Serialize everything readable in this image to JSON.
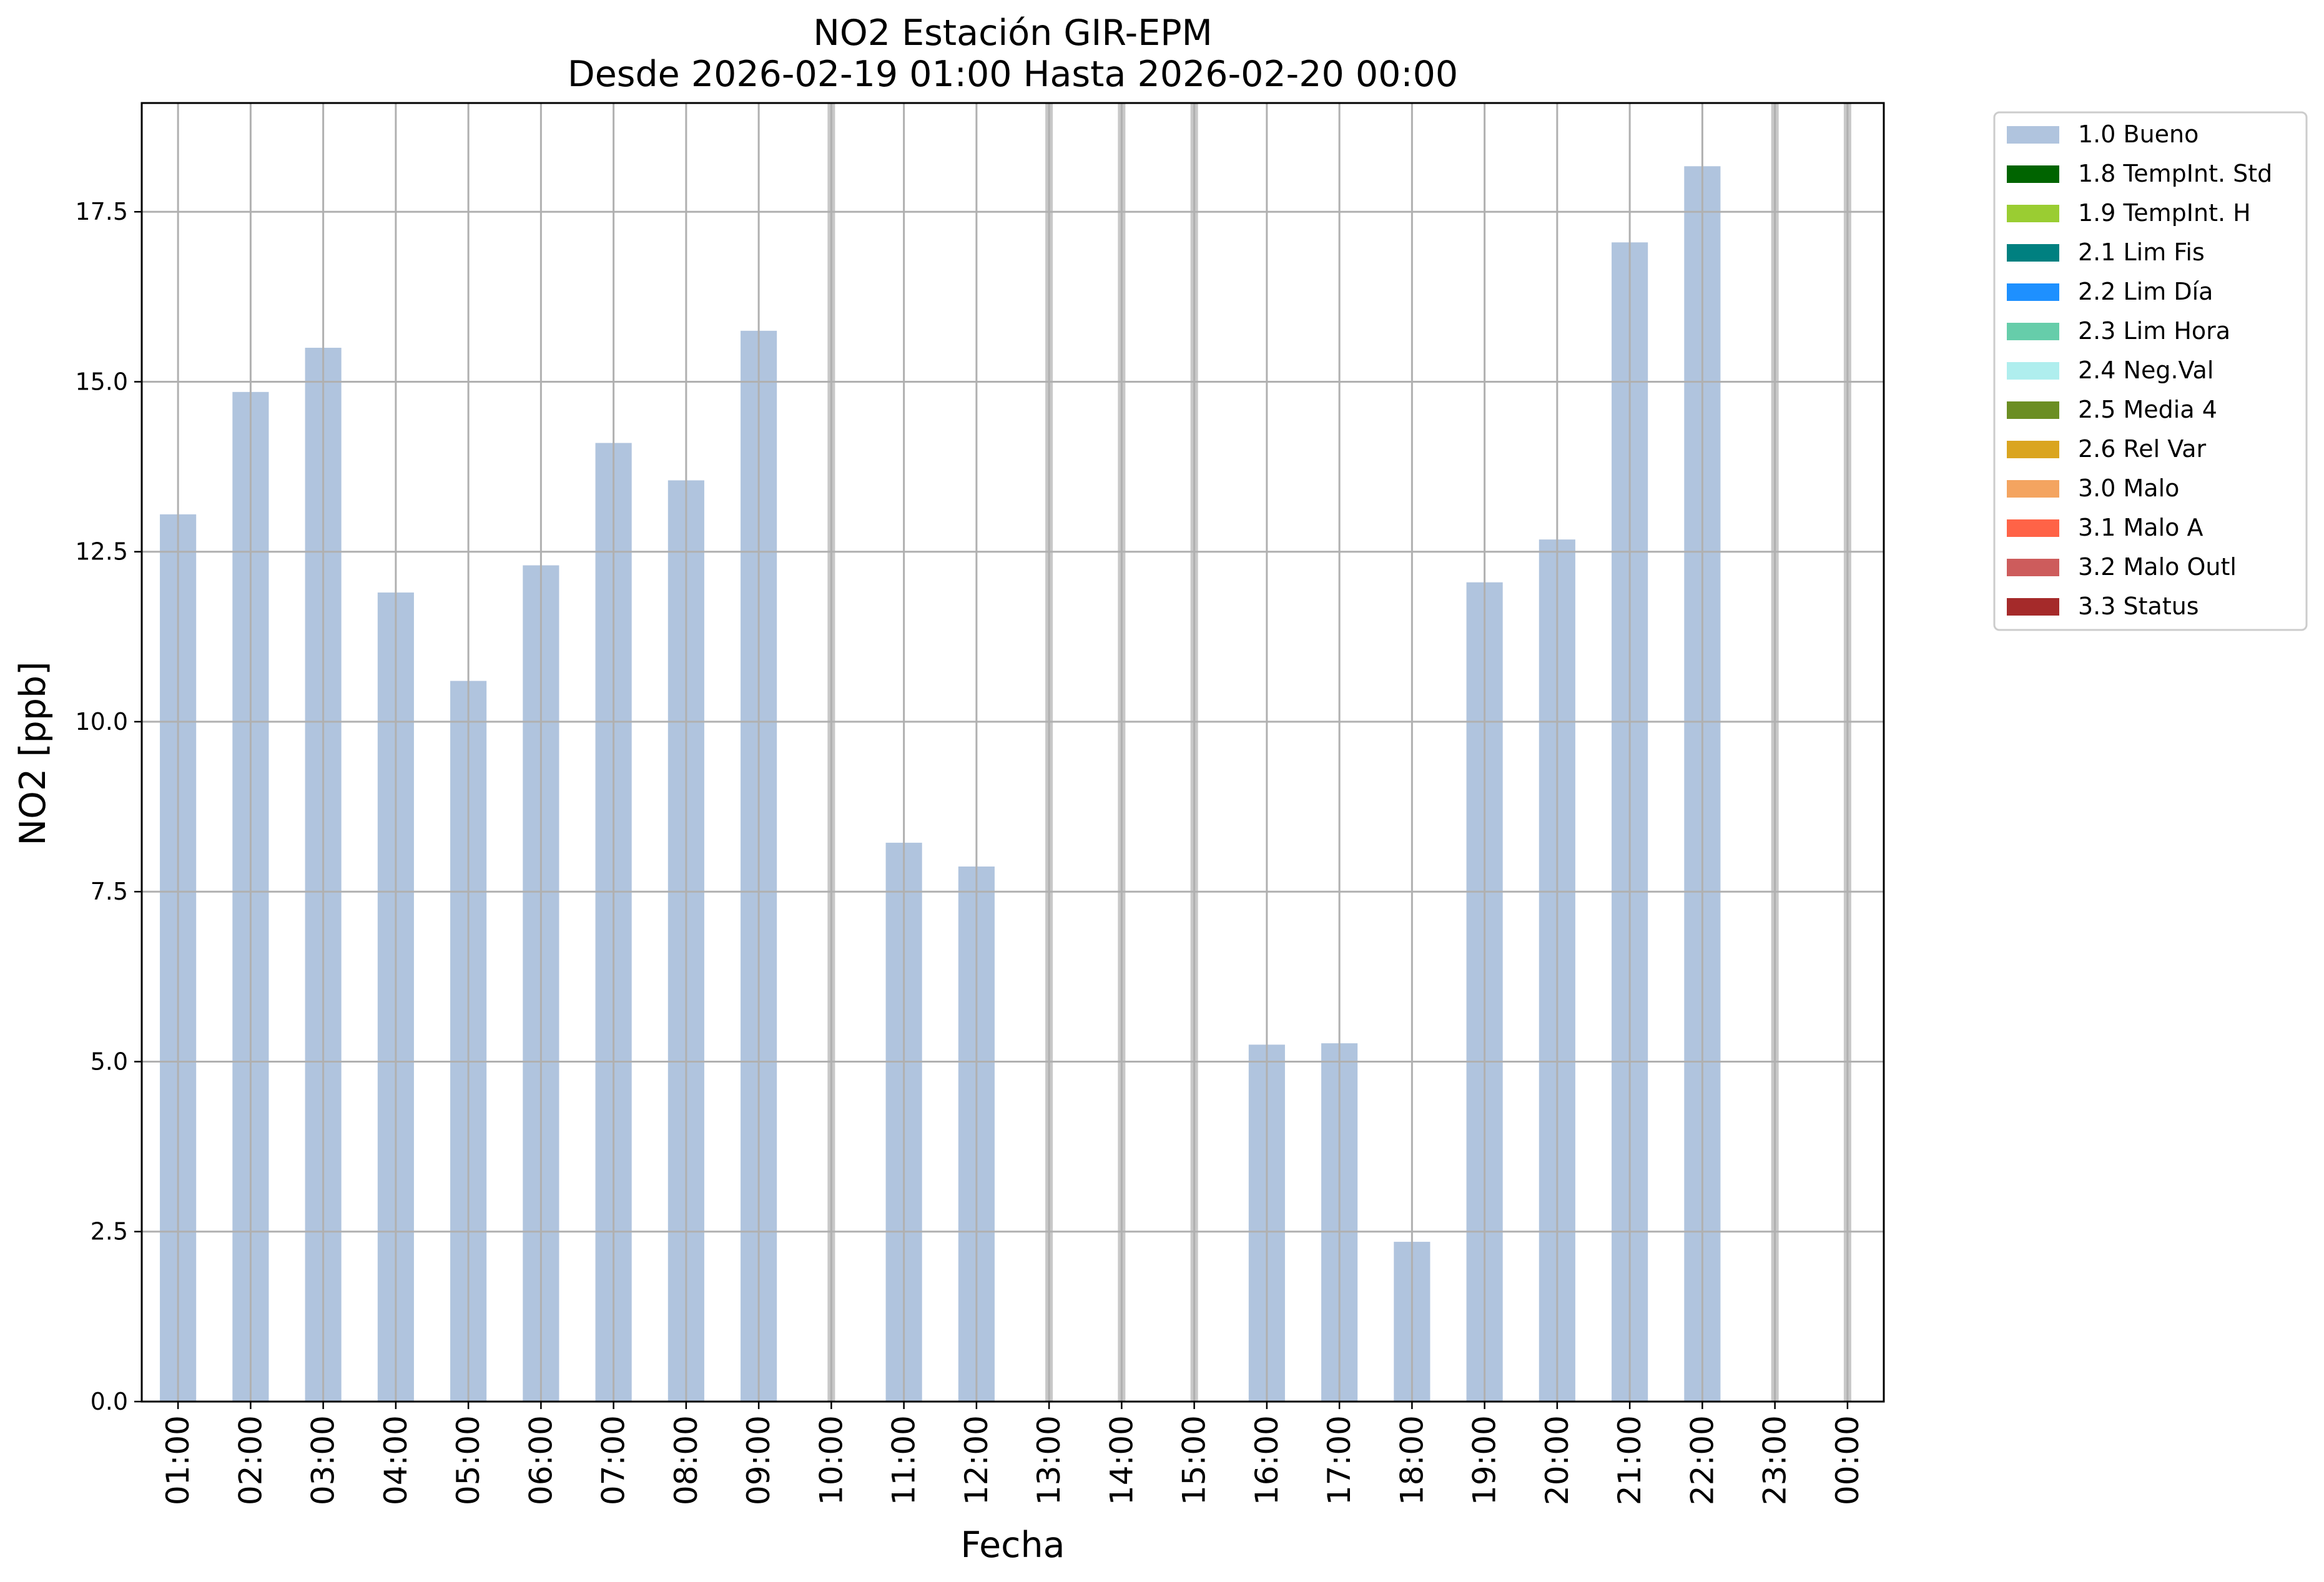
{
  "chart_data": {
    "type": "bar",
    "title": "NO2 Estación GIR-EPM",
    "subtitle": "Desde 2026-02-19 01:00 Hasta 2026-02-20 00:00",
    "xlabel": "Fecha",
    "ylabel": "NO2 [ppb]",
    "ylim": [
      0,
      19.1
    ],
    "yticks": [
      "0.0",
      "2.5",
      "5.0",
      "7.5",
      "10.0",
      "12.5",
      "15.0",
      "17.5"
    ],
    "grid": true,
    "legend_position": "outside-top-right",
    "categories": [
      "01:00",
      "02:00",
      "03:00",
      "04:00",
      "05:00",
      "06:00",
      "07:00",
      "08:00",
      "09:00",
      "10:00",
      "11:00",
      "12:00",
      "13:00",
      "14:00",
      "15:00",
      "16:00",
      "17:00",
      "18:00",
      "19:00",
      "20:00",
      "21:00",
      "22:00",
      "23:00",
      "00:00"
    ],
    "series": [
      {
        "name": "1.0 Bueno",
        "color": "#b0c4de",
        "values": [
          13.05,
          14.85,
          15.5,
          11.9,
          10.6,
          12.3,
          14.1,
          13.55,
          15.75,
          null,
          8.22,
          7.87,
          null,
          null,
          null,
          5.25,
          5.27,
          2.35,
          12.05,
          12.68,
          17.05,
          18.17,
          null,
          null
        ]
      }
    ],
    "missing_marker_color": "#c8c8c8",
    "legend": [
      {
        "label": "1.0 Bueno",
        "color": "#b0c4de"
      },
      {
        "label": "1.8 TempInt. Std",
        "color": "#006400"
      },
      {
        "label": "1.9 TempInt. H",
        "color": "#9acd32"
      },
      {
        "label": "2.1 Lim Fis",
        "color": "#008080"
      },
      {
        "label": "2.2 Lim Día",
        "color": "#1e90ff"
      },
      {
        "label": "2.3 Lim Hora",
        "color": "#66cdaa"
      },
      {
        "label": "2.4 Neg.Val",
        "color": "#afeeee"
      },
      {
        "label": "2.5 Media 4",
        "color": "#6b8e23"
      },
      {
        "label": "2.6 Rel Var",
        "color": "#daa520"
      },
      {
        "label": "3.0 Malo",
        "color": "#f4a460"
      },
      {
        "label": "3.1 Malo A",
        "color": "#ff6347"
      },
      {
        "label": "3.2 Malo Outl",
        "color": "#cd5c5c"
      },
      {
        "label": "3.3 Status",
        "color": "#a52a2a"
      }
    ]
  }
}
